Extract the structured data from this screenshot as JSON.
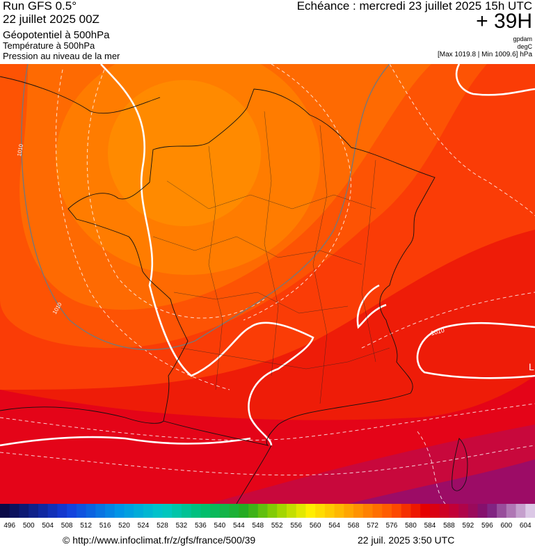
{
  "header": {
    "run": "Run GFS 0.5°",
    "date": "22 juillet 2025 00Z",
    "field1": "Géopotentiel à 500hPa",
    "field2": "Température à 500hPa",
    "field3": "Pression au niveau de la mer",
    "echeance": "Echéance : mercredi 23 juillet 2025 15h UTC",
    "offset": "+ 39H",
    "unit1": "gpdam",
    "unit2": "degC",
    "unit3": "[Max 1019.8 | Min 1009.6] hPa"
  },
  "map": {
    "isobar_label_1": "1010",
    "isobar_label_2": "1010",
    "isobar_label_3": "1010",
    "low_marker": "L"
  },
  "colorbar": {
    "labels": [
      496,
      500,
      504,
      508,
      512,
      516,
      520,
      524,
      528,
      532,
      536,
      540,
      544,
      548,
      552,
      556,
      560,
      564,
      568,
      572,
      576,
      580,
      584,
      588,
      592,
      596,
      600,
      604
    ]
  },
  "footer": {
    "source": "© http://www.infoclimat.fr/z/gfs/france/500/39",
    "generated": "22 juil. 2025  3:50 UTC"
  }
}
